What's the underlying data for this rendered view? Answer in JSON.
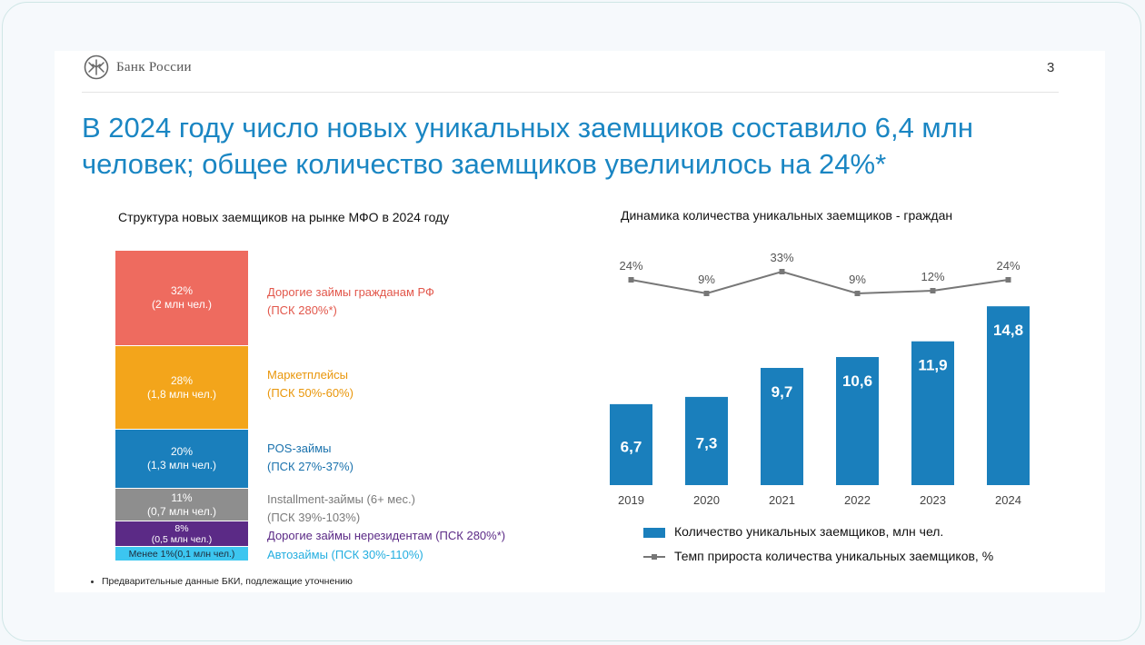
{
  "header": {
    "logo_text": "Банк России",
    "page_number": "3"
  },
  "title": {
    "line1": "В 2024 году число новых уникальных заемщиков составило 6,4 млн",
    "line2": "человек; общее количество заемщиков увеличилось на 24%*"
  },
  "left_chart": {
    "subtitle": "Структура новых заемщиков на рынке МФО в 2024 году",
    "segments": [
      {
        "pct": "32%",
        "sub": "(2 млн чел.)",
        "label1": "Дорогие займы гражданам РФ",
        "label2": "(ПСК 280%*)",
        "color": "#ee6b5f",
        "label_color": "#e2574b",
        "share": 32
      },
      {
        "pct": "28%",
        "sub": "(1,8 млн чел.)",
        "label1": "Маркетплейсы",
        "label2": "(ПСК 50%-60%)",
        "color": "#f3a51b",
        "label_color": "#e9960a",
        "share": 28
      },
      {
        "pct": "20%",
        "sub": "(1,3 млн чел.)",
        "label1": "POS-займы",
        "label2": "(ПСК 27%-37%)",
        "color": "#1a7fbc",
        "label_color": "#1a72ad",
        "share": 20
      },
      {
        "pct": "11%",
        "sub": "(0,7 млн чел.)",
        "label1": "Installment-займы (6+ мес.)",
        "label2": "(ПСК 39%-103%)",
        "color": "#8e8e8e",
        "label_color": "#7a7a7a",
        "share": 11
      },
      {
        "pct": "8%",
        "sub": "(0,5 млн чел.)",
        "label1": "Дорогие займы нерезидентам (ПСК 280%*)",
        "label2": "",
        "color": "#5b2a86",
        "label_color": "#5b2a86",
        "share": 8
      },
      {
        "pct": "Менее 1%(0,1 млн чел.)",
        "sub": "",
        "label1": "Автозаймы (ПСК 30%-110%)",
        "label2": "",
        "color": "#3cc6f0",
        "label_color": "#23aee0",
        "share": 1
      }
    ]
  },
  "chart_data": {
    "type": "bar",
    "title": "Динамика количества уникальных заемщиков - граждан",
    "categories": [
      "2019",
      "2020",
      "2021",
      "2022",
      "2023",
      "2024"
    ],
    "series": [
      {
        "name": "Количество уникальных заемщиков, млн чел.",
        "type": "bar",
        "values": [
          6.7,
          7.3,
          9.7,
          10.6,
          11.9,
          14.8
        ],
        "labels": [
          "6,7",
          "7,3",
          "9,7",
          "10,6",
          "11,9",
          "14,8"
        ],
        "color": "#1a7fbc"
      },
      {
        "name": "Темп прироста количества уникальных заемщиков, %",
        "type": "line",
        "values": [
          24,
          9,
          33,
          9,
          12,
          24
        ],
        "labels": [
          "24%",
          "9%",
          "33%",
          "9%",
          "12%",
          "24%"
        ],
        "color": "#777777"
      }
    ]
  },
  "legend": {
    "bar_label": "Количество уникальных заемщиков, млн чел.",
    "line_label": "Темп прироста количества уникальных заемщиков, %"
  },
  "footnote": "Предварительные данные БКИ, подлежащие уточнению"
}
